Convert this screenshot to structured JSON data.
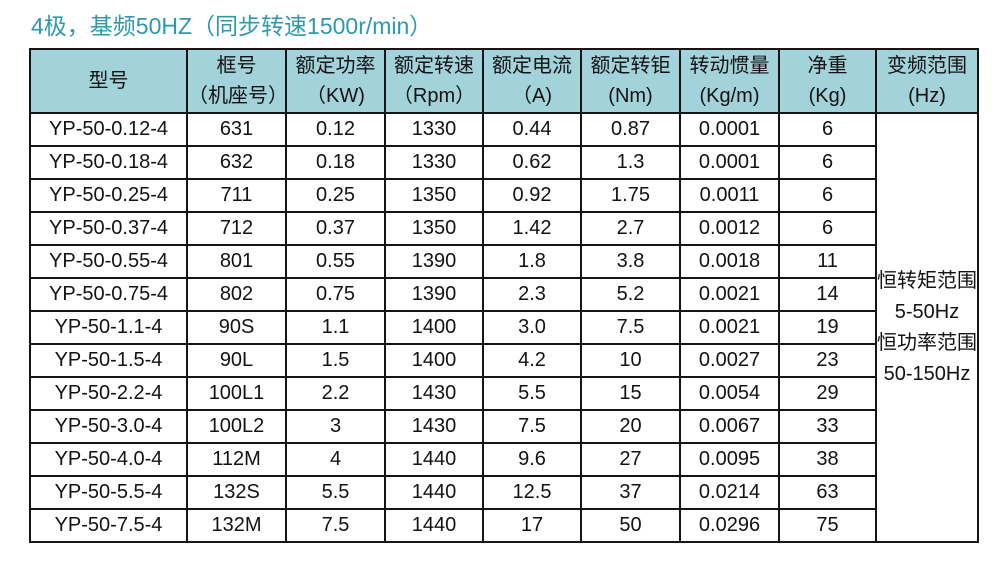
{
  "title": "4极，基频50HZ（同步转速1500r/min）",
  "colors": {
    "title_text": "#2e99ad",
    "header_bg": "#a2d3db",
    "border": "#151515",
    "body_bg": "#ffffff"
  },
  "table": {
    "columns": [
      {
        "line1": "型号",
        "line2": ""
      },
      {
        "line1": "框号",
        "line2": "（机座号）"
      },
      {
        "line1": "额定功率",
        "line2": "（KW)"
      },
      {
        "line1": "额定转速",
        "line2": "（Rpm）"
      },
      {
        "line1": "额定电流",
        "line2": "（A)"
      },
      {
        "line1": "额定转钜",
        "line2": "(Nm)"
      },
      {
        "line1": "转动惯量",
        "line2": "(Kg/m)"
      },
      {
        "line1": "净重",
        "line2": "(Kg)"
      },
      {
        "line1": "变频范围",
        "line2": "(Hz)"
      }
    ],
    "rows": [
      [
        "YP-50-0.12-4",
        "631",
        "0.12",
        "1330",
        "0.44",
        "0.87",
        "0.0001",
        "6"
      ],
      [
        "YP-50-0.18-4",
        "632",
        "0.18",
        "1330",
        "0.62",
        "1.3",
        "0.0001",
        "6"
      ],
      [
        "YP-50-0.25-4",
        "711",
        "0.25",
        "1350",
        "0.92",
        "1.75",
        "0.0011",
        "6"
      ],
      [
        "YP-50-0.37-4",
        "712",
        "0.37",
        "1350",
        "1.42",
        "2.7",
        "0.0012",
        "6"
      ],
      [
        "YP-50-0.55-4",
        "801",
        "0.55",
        "1390",
        "1.8",
        "3.8",
        "0.0018",
        "11"
      ],
      [
        "YP-50-0.75-4",
        "802",
        "0.75",
        "1390",
        "2.3",
        "5.2",
        "0.0021",
        "14"
      ],
      [
        "YP-50-1.1-4",
        "90S",
        "1.1",
        "1400",
        "3.0",
        "7.5",
        "0.0021",
        "19"
      ],
      [
        "YP-50-1.5-4",
        "90L",
        "1.5",
        "1400",
        "4.2",
        "10",
        "0.0027",
        "23"
      ],
      [
        "YP-50-2.2-4",
        "100L1",
        "2.2",
        "1430",
        "5.5",
        "15",
        "0.0054",
        "29"
      ],
      [
        "YP-50-3.0-4",
        "100L2",
        "3",
        "1430",
        "7.5",
        "20",
        "0.0067",
        "33"
      ],
      [
        "YP-50-4.0-4",
        "112M",
        "4",
        "1440",
        "9.6",
        "27",
        "0.0095",
        "38"
      ],
      [
        "YP-50-5.5-4",
        "132S",
        "5.5",
        "1440",
        "12.5",
        "37",
        "0.0214",
        "63"
      ],
      [
        "YP-50-7.5-4",
        "132M",
        "7.5",
        "1440",
        "17",
        "50",
        "0.0296",
        "75"
      ]
    ],
    "freq_range_note": [
      "恒转矩范围",
      "5-50Hz",
      "恒功率范围",
      "50-150Hz"
    ]
  }
}
